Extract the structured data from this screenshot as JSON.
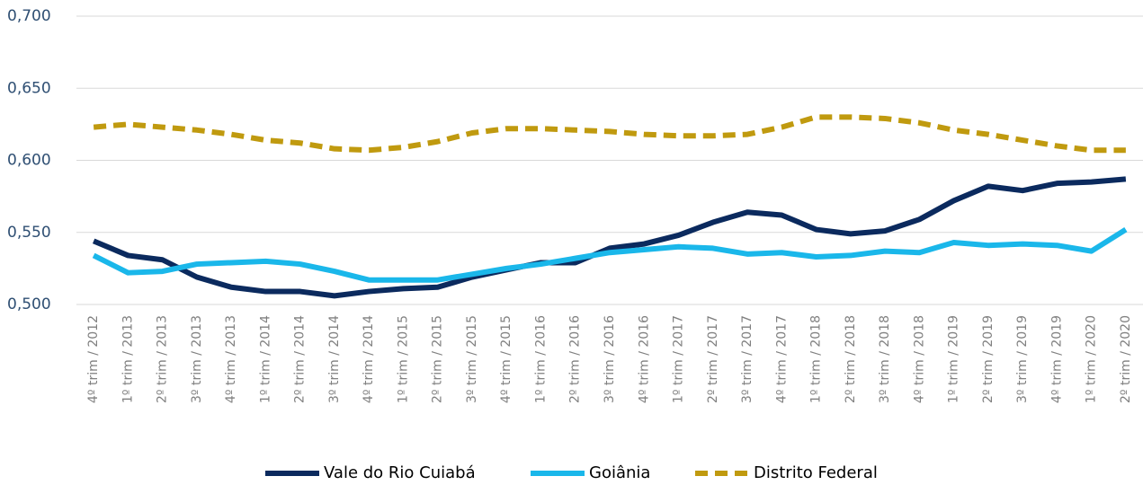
{
  "chart_data": {
    "type": "line",
    "categories": [
      "4º trim / 2012",
      "1º trim / 2013",
      "2º trim / 2013",
      "3º trim / 2013",
      "4º trim / 2013",
      "1º trim / 2014",
      "2º trim / 2014",
      "3º trim / 2014",
      "4º trim / 2014",
      "1º trim / 2015",
      "2º trim / 2015",
      "3º trim / 2015",
      "4º trim / 2015",
      "1º trim / 2016",
      "2º trim / 2016",
      "3º trim / 2016",
      "4º trim / 2016",
      "1º trim / 2017",
      "2º trim / 2017",
      "3º trim / 2017",
      "4º trim / 2017",
      "1º trim / 2018",
      "2º trim / 2018",
      "3º trim / 2018",
      "4º trim / 2018",
      "1º trim / 2019",
      "2º trim / 2019",
      "3º trim / 2019",
      "4º trim / 2019",
      "1º trim / 2020",
      "2º trim / 2020"
    ],
    "series": [
      {
        "name": "Vale do Rio Cuiabá",
        "color": "#0b2a5e",
        "dashed": false,
        "values": [
          0.544,
          0.534,
          0.531,
          0.519,
          0.512,
          0.509,
          0.509,
          0.506,
          0.509,
          0.511,
          0.512,
          0.519,
          0.524,
          0.529,
          0.529,
          0.539,
          0.542,
          0.548,
          0.557,
          0.564,
          0.562,
          0.552,
          0.549,
          0.551,
          0.559,
          0.572,
          0.582,
          0.579,
          0.584,
          0.585,
          0.587
        ]
      },
      {
        "name": "Goiânia",
        "color": "#1ab7ea",
        "dashed": false,
        "values": [
          0.534,
          0.522,
          0.523,
          0.528,
          0.529,
          0.53,
          0.528,
          0.523,
          0.517,
          0.517,
          0.517,
          0.521,
          0.525,
          0.528,
          0.532,
          0.536,
          0.538,
          0.54,
          0.539,
          0.535,
          0.536,
          0.533,
          0.534,
          0.537,
          0.536,
          0.543,
          0.541,
          0.542,
          0.541,
          0.537,
          0.552
        ]
      },
      {
        "name": "Distrito Federal",
        "color": "#c09a0f",
        "dashed": true,
        "values": [
          0.623,
          0.625,
          0.623,
          0.621,
          0.618,
          0.614,
          0.612,
          0.608,
          0.607,
          0.609,
          0.613,
          0.619,
          0.622,
          0.622,
          0.621,
          0.62,
          0.618,
          0.617,
          0.617,
          0.618,
          0.623,
          0.63,
          0.63,
          0.629,
          0.626,
          0.621,
          0.618,
          0.614,
          0.61,
          0.607,
          0.607
        ]
      }
    ],
    "ylim": [
      0.5,
      0.7
    ],
    "yticks": [
      {
        "value": 0.5,
        "label": "0,500"
      },
      {
        "value": 0.55,
        "label": "0,550"
      },
      {
        "value": 0.6,
        "label": "0,600"
      },
      {
        "value": 0.65,
        "label": "0,650"
      },
      {
        "value": 0.7,
        "label": "0,700"
      }
    ],
    "grid": true,
    "legend": "bottom"
  }
}
